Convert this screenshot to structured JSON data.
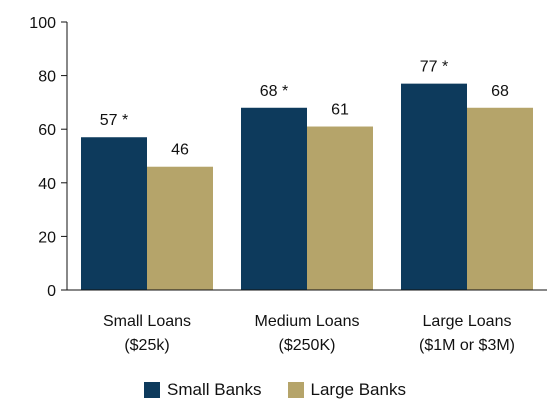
{
  "chart_data": {
    "type": "bar",
    "categories": [
      [
        "Small Loans",
        "($25k)"
      ],
      [
        "Medium Loans",
        "($250K)"
      ],
      [
        "Large Loans",
        "($1M or $3M)"
      ]
    ],
    "series": [
      {
        "name": "Small Banks",
        "values": [
          57,
          68,
          77
        ],
        "labels": [
          "57 *",
          "68 *",
          "77 *"
        ],
        "color": "#0d3a5c"
      },
      {
        "name": "Large Banks",
        "values": [
          46,
          61,
          68
        ],
        "labels": [
          "46",
          "61",
          "68"
        ],
        "color": "#b5a46a"
      }
    ],
    "ylim": [
      0,
      100
    ],
    "yticks": [
      0,
      20,
      40,
      60,
      80,
      100
    ],
    "grid": false,
    "legend_position": "bottom"
  }
}
